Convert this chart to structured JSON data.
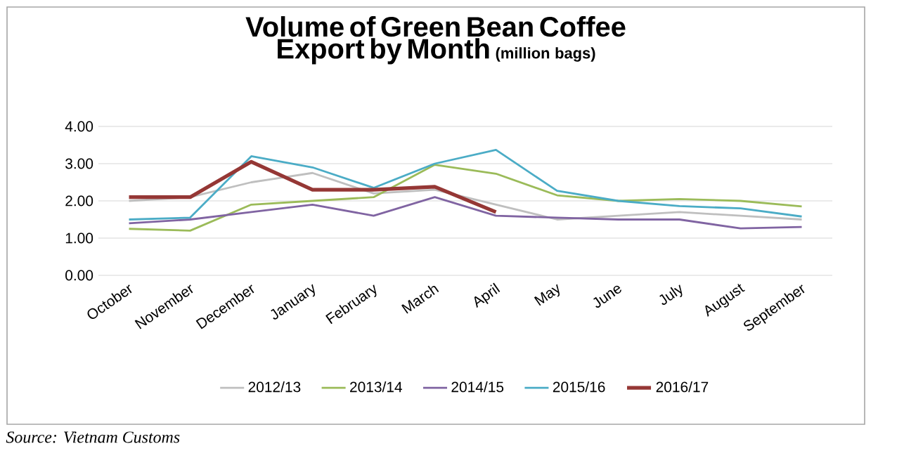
{
  "chart_data": {
    "type": "line",
    "title": "Volume of Green Bean Coffee Export by Month",
    "subtitle": "(million bags)",
    "categories": [
      "October",
      "November",
      "December",
      "January",
      "February",
      "March",
      "April",
      "May",
      "June",
      "July",
      "August",
      "September"
    ],
    "series": [
      {
        "name": "2012/13",
        "color": "#bfbfbf",
        "values": [
          2.0,
          2.1,
          2.5,
          2.75,
          2.2,
          2.3,
          1.9,
          1.5,
          1.6,
          1.7,
          1.6,
          1.5
        ]
      },
      {
        "name": "2013/14",
        "color": "#9bbb59",
        "values": [
          1.25,
          1.2,
          1.9,
          2.0,
          2.1,
          2.97,
          2.73,
          2.15,
          2.0,
          2.05,
          2.0,
          1.85
        ]
      },
      {
        "name": "2014/15",
        "color": "#8064a2",
        "values": [
          1.4,
          1.5,
          1.7,
          1.9,
          1.6,
          2.1,
          1.6,
          1.55,
          1.5,
          1.5,
          1.26,
          1.3
        ]
      },
      {
        "name": "2015/16",
        "color": "#4bacc6",
        "values": [
          1.5,
          1.55,
          3.2,
          2.9,
          2.35,
          3.0,
          3.37,
          2.27,
          2.0,
          1.86,
          1.8,
          1.58
        ]
      },
      {
        "name": "2016/17",
        "color": "#953735",
        "values": [
          2.1,
          2.1,
          3.05,
          2.3,
          2.3,
          2.38,
          1.7,
          null,
          null,
          null,
          null,
          null
        ]
      }
    ],
    "ylim": [
      0,
      4
    ],
    "yticks": [
      {
        "value": 0,
        "label": "0.00"
      },
      {
        "value": 1,
        "label": "1.00"
      },
      {
        "value": 2,
        "label": "2.00"
      },
      {
        "value": 3,
        "label": "3.00"
      },
      {
        "value": 4,
        "label": "4.00"
      }
    ],
    "grid": "y",
    "legend": "bottom",
    "marker": "none",
    "line_style": "solid",
    "annotations": [
      "*Source: Vietnam Customs*"
    ]
  }
}
